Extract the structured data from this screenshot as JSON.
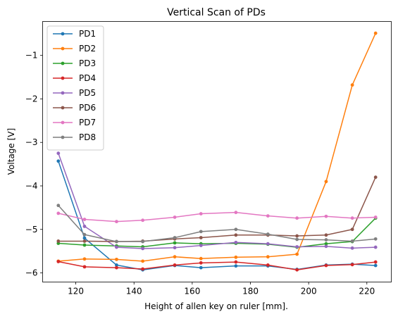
{
  "chart_data": {
    "type": "line",
    "title": "Vertical Scan of PDs",
    "xlabel": "Height of allen key on ruler [mm].",
    "ylabel": "Voltage [V]",
    "xlim": [
      108.6,
      228.4
    ],
    "ylim": [
      -6.21,
      -0.22
    ],
    "xticks": [
      120,
      140,
      160,
      180,
      200,
      220
    ],
    "yticks": [
      -6,
      -5,
      -4,
      -3,
      -2,
      -1
    ],
    "xtick_labels": [
      "120",
      "140",
      "160",
      "180",
      "200",
      "220"
    ],
    "ytick_labels": [
      "−6",
      "−5",
      "−4",
      "−3",
      "−2",
      "−1"
    ],
    "grid": false,
    "legend_position": "top-left",
    "x": [
      114,
      123,
      134,
      143,
      154,
      163,
      175,
      186,
      196,
      206,
      215,
      223
    ],
    "series": [
      {
        "name": "PD1",
        "color": "#1f77b4",
        "values": [
          -3.43,
          -5.2,
          -5.82,
          -5.93,
          -5.83,
          -5.88,
          -5.84,
          -5.84,
          -5.92,
          -5.82,
          -5.8,
          -5.83
        ]
      },
      {
        "name": "PD2",
        "color": "#ff7f0e",
        "values": [
          -5.73,
          -5.68,
          -5.69,
          -5.73,
          -5.63,
          -5.67,
          -5.64,
          -5.63,
          -5.57,
          -3.9,
          -1.68,
          -0.49
        ]
      },
      {
        "name": "PD3",
        "color": "#2ca02c",
        "values": [
          -5.32,
          -5.36,
          -5.38,
          -5.4,
          -5.31,
          -5.33,
          -5.32,
          -5.34,
          -5.41,
          -5.33,
          -5.28,
          -4.74
        ]
      },
      {
        "name": "PD4",
        "color": "#d62728",
        "values": [
          -5.74,
          -5.86,
          -5.88,
          -5.91,
          -5.82,
          -5.77,
          -5.75,
          -5.82,
          -5.93,
          -5.83,
          -5.81,
          -5.75
        ]
      },
      {
        "name": "PD5",
        "color": "#9467bd",
        "values": [
          -3.25,
          -4.93,
          -5.41,
          -5.44,
          -5.42,
          -5.37,
          -5.3,
          -5.33,
          -5.4,
          -5.39,
          -5.43,
          -5.41
        ]
      },
      {
        "name": "PD6",
        "color": "#8c564b",
        "values": [
          -5.27,
          -5.27,
          -5.28,
          -5.27,
          -5.22,
          -5.19,
          -5.13,
          -5.13,
          -5.15,
          -5.13,
          -5.0,
          -3.8
        ]
      },
      {
        "name": "PD7",
        "color": "#e377c2",
        "values": [
          -4.63,
          -4.77,
          -4.82,
          -4.79,
          -4.72,
          -4.64,
          -4.61,
          -4.69,
          -4.74,
          -4.7,
          -4.74,
          -4.72
        ]
      },
      {
        "name": "PD8",
        "color": "#7f7f7f",
        "values": [
          -4.45,
          -5.12,
          -5.28,
          -5.28,
          -5.19,
          -5.05,
          -5.0,
          -5.11,
          -5.23,
          -5.24,
          -5.27,
          -5.22
        ]
      }
    ]
  }
}
